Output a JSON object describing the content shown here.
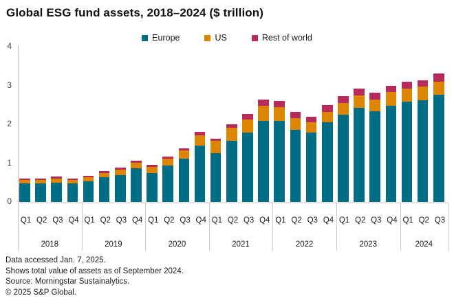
{
  "title": "Global ESG fund assets, 2018–2024 ($ trillion)",
  "legend": {
    "items": [
      {
        "label": "Europe",
        "color": "#006d84"
      },
      {
        "label": "US",
        "color": "#de8500"
      },
      {
        "label": "Rest of world",
        "color": "#b92a5c"
      }
    ]
  },
  "footer": {
    "lines": [
      "Data accessed Jan. 7, 2025.",
      "Shows total value of assets as of September 2024.",
      "Source: Morningstar Sustainalytics.",
      "© 2025 S&P Global."
    ]
  },
  "chart_data": {
    "type": "bar",
    "stacked": true,
    "title": "Global ESG fund assets, 2018–2024 ($ trillion)",
    "unit": "$ trillion",
    "ylim": [
      0,
      4
    ],
    "yticks": [
      0,
      1,
      2,
      3,
      4
    ],
    "grid": false,
    "legend_position": "top-center",
    "years": [
      {
        "year": "2018",
        "quarters": [
          "Q1",
          "Q2",
          "Q3",
          "Q4"
        ]
      },
      {
        "year": "2019",
        "quarters": [
          "Q1",
          "Q2",
          "Q3",
          "Q4"
        ]
      },
      {
        "year": "2020",
        "quarters": [
          "Q1",
          "Q2",
          "Q3",
          "Q4"
        ]
      },
      {
        "year": "2021",
        "quarters": [
          "Q1",
          "Q2",
          "Q3",
          "Q4"
        ]
      },
      {
        "year": "2022",
        "quarters": [
          "Q1",
          "Q2",
          "Q3",
          "Q4"
        ]
      },
      {
        "year": "2023",
        "quarters": [
          "Q1",
          "Q2",
          "Q3",
          "Q4"
        ]
      },
      {
        "year": "2024",
        "quarters": [
          "Q1",
          "Q2",
          "Q3"
        ]
      }
    ],
    "series": [
      {
        "name": "Europe",
        "color": "#006d84",
        "values": [
          0.47,
          0.47,
          0.5,
          0.47,
          0.53,
          0.63,
          0.7,
          0.86,
          0.75,
          0.94,
          1.12,
          1.45,
          1.26,
          1.57,
          1.79,
          2.1,
          2.1,
          1.86,
          1.79,
          2.06,
          2.25,
          2.43,
          2.34,
          2.49,
          2.58,
          2.62,
          2.77
        ]
      },
      {
        "name": "US",
        "color": "#de8500",
        "values": [
          0.09,
          0.09,
          0.1,
          0.09,
          0.11,
          0.12,
          0.14,
          0.15,
          0.16,
          0.18,
          0.21,
          0.27,
          0.31,
          0.35,
          0.33,
          0.38,
          0.35,
          0.3,
          0.26,
          0.27,
          0.31,
          0.32,
          0.31,
          0.34,
          0.35,
          0.36,
          0.34
        ]
      },
      {
        "name": "Rest of world",
        "color": "#b92a5c",
        "values": [
          0.05,
          0.05,
          0.05,
          0.05,
          0.04,
          0.05,
          0.05,
          0.05,
          0.04,
          0.05,
          0.06,
          0.08,
          0.07,
          0.09,
          0.15,
          0.17,
          0.15,
          0.16,
          0.15,
          0.17,
          0.17,
          0.17,
          0.17,
          0.17,
          0.17,
          0.16,
          0.2
        ]
      }
    ]
  }
}
